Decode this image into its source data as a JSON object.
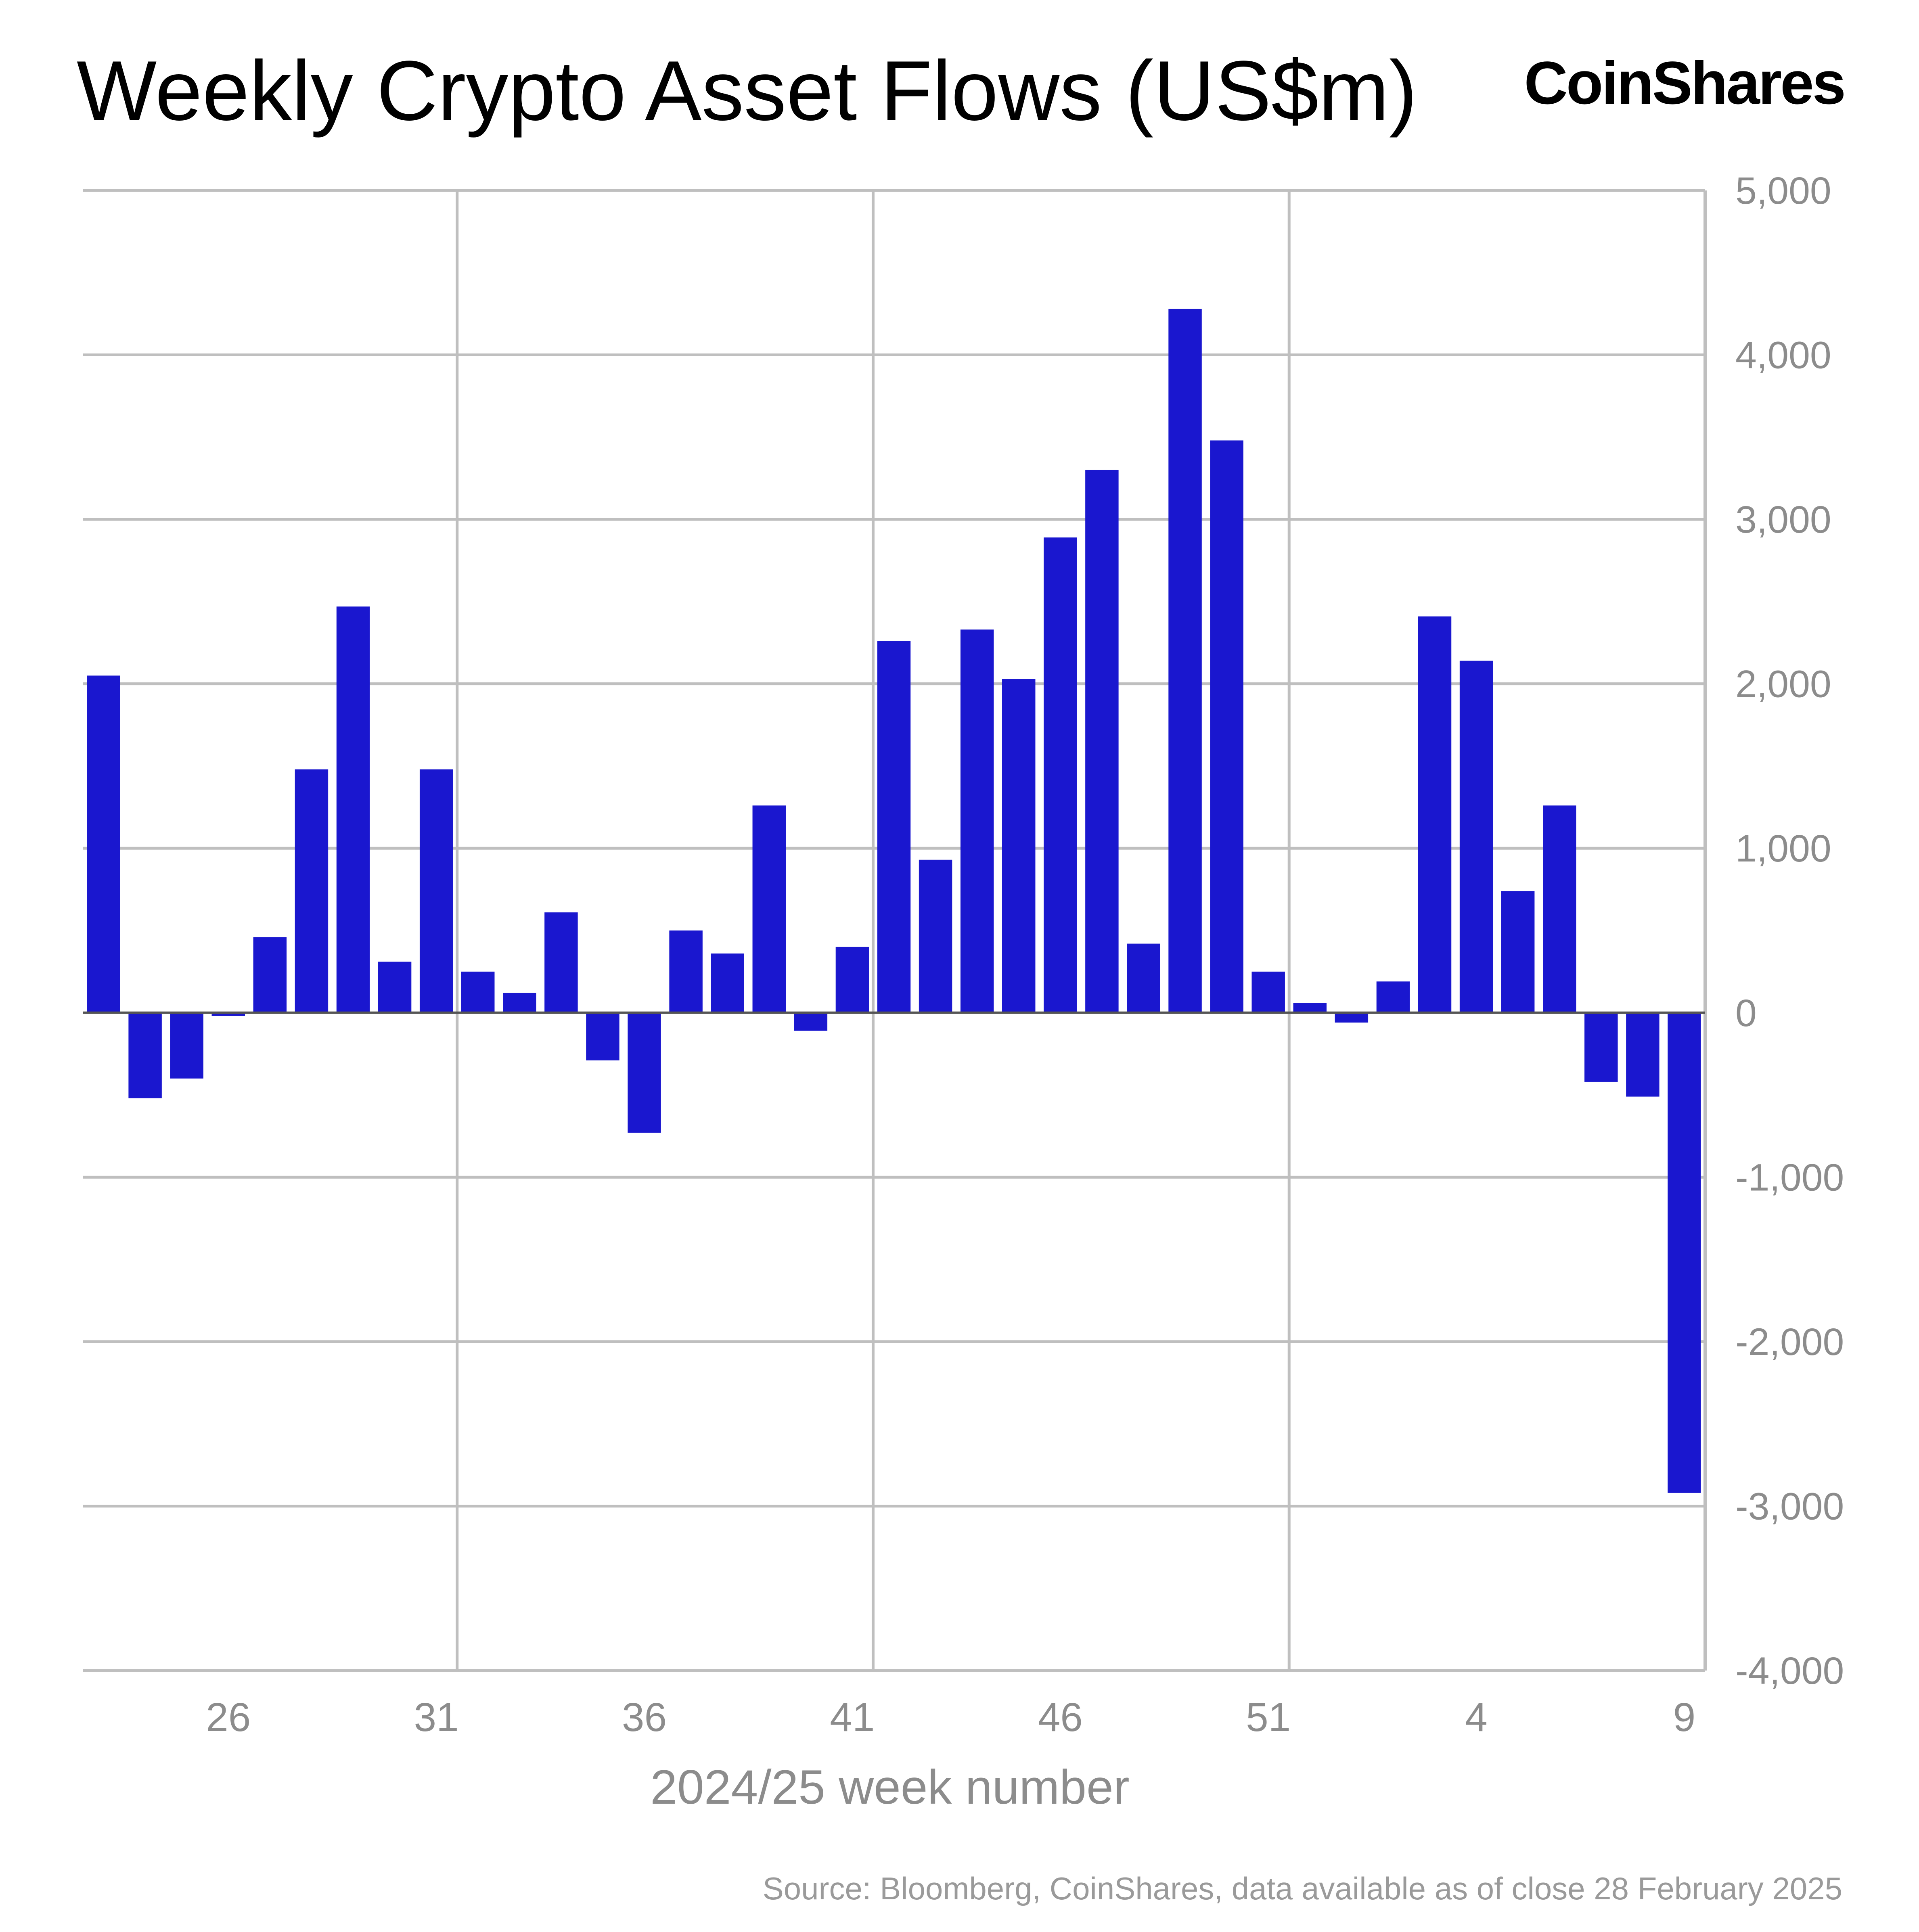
{
  "header": {
    "title": "Weekly Crypto Asset Flows (US$m)",
    "brand": "CoinShares"
  },
  "footer": {
    "source": "Source: Bloomberg, CoinShares, data available as of close 28 February 2025"
  },
  "colors": {
    "bar": "#1a17cf",
    "grid": "#bfbfbf",
    "tick_text": "#8c8c8c"
  },
  "chart_data": {
    "type": "bar",
    "title": "Weekly Crypto Asset Flows (US$m)",
    "xlabel": "2024/25 week number",
    "ylabel": "",
    "y_axis_side": "right",
    "ylim": [
      -4000,
      5000
    ],
    "yticks": [
      5000,
      4000,
      3000,
      2000,
      1000,
      0,
      -1000,
      -2000,
      -3000,
      -4000
    ],
    "ytick_labels": [
      "5,000",
      "4,000",
      "3,000",
      "2,000",
      "1,000",
      "0",
      "-1,000",
      "-2,000",
      "-3,000",
      "-4,000"
    ],
    "xtick_labels": [
      "26",
      "31",
      "36",
      "41",
      "46",
      "51",
      "4",
      "9"
    ],
    "grid": true,
    "categories": [
      "23",
      "24",
      "25",
      "26",
      "27",
      "28",
      "29",
      "30",
      "31",
      "32",
      "33",
      "34",
      "35",
      "36",
      "37",
      "38",
      "39",
      "40",
      "41",
      "42",
      "43",
      "44",
      "45",
      "46",
      "47",
      "48",
      "49",
      "50",
      "51",
      "52",
      "1",
      "2",
      "3",
      "4",
      "5",
      "6",
      "7",
      "8",
      "9"
    ],
    "values": [
      2050,
      -520,
      -400,
      -20,
      460,
      1480,
      2470,
      310,
      1480,
      250,
      120,
      610,
      -290,
      -730,
      500,
      360,
      1260,
      -110,
      400,
      2260,
      930,
      2330,
      2030,
      2890,
      3300,
      420,
      4280,
      3480,
      250,
      60,
      -60,
      190,
      2410,
      2140,
      740,
      1260,
      -420,
      -510,
      -2920
    ]
  }
}
